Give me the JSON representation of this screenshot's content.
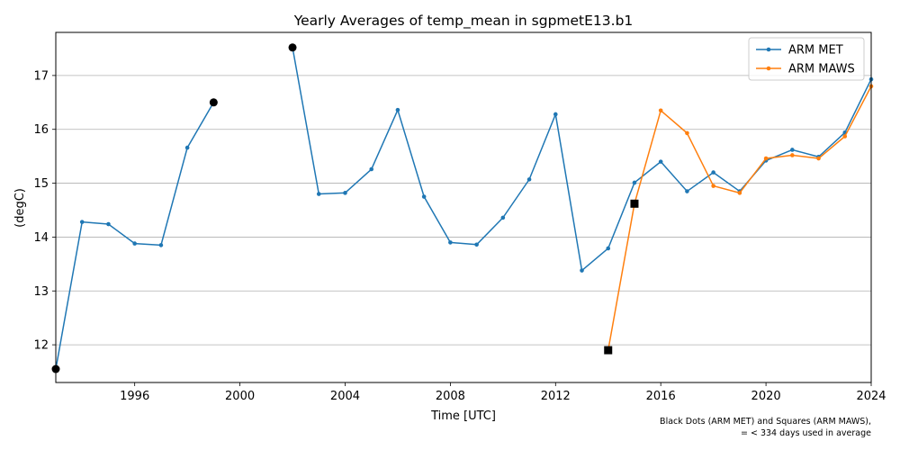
{
  "chart_data": {
    "type": "line",
    "title": "Yearly Averages of temp_mean in sgpmetE13.b1",
    "xlabel": "Time [UTC]",
    "ylabel": "(degC)",
    "xlim": [
      1993,
      2024
    ],
    "ylim": [
      11.3,
      17.8
    ],
    "x_ticks": [
      1996,
      2000,
      2004,
      2008,
      2012,
      2016,
      2020,
      2024
    ],
    "y_ticks": [
      12,
      13,
      14,
      15,
      16,
      17
    ],
    "grid": "horizontal",
    "legend_position": "top-right",
    "series": [
      {
        "name": "ARM MET",
        "color": "#1f77b4",
        "points": [
          [
            1993,
            11.55
          ],
          [
            1994,
            14.28
          ],
          [
            1995,
            14.24
          ],
          [
            1996,
            13.88
          ],
          [
            1997,
            13.85
          ],
          [
            1998,
            15.66
          ],
          [
            1999,
            16.5
          ],
          null,
          [
            2002,
            17.52
          ],
          [
            2003,
            14.8
          ],
          [
            2004,
            14.82
          ],
          [
            2005,
            15.26
          ],
          [
            2006,
            16.36
          ],
          [
            2007,
            14.75
          ],
          [
            2008,
            13.9
          ],
          [
            2009,
            13.86
          ],
          [
            2010,
            14.36
          ],
          [
            2011,
            15.07
          ],
          [
            2012,
            16.28
          ],
          [
            2013,
            13.38
          ],
          [
            2014,
            13.79
          ],
          [
            2015,
            15.01
          ],
          [
            2016,
            15.4
          ],
          [
            2017,
            14.85
          ],
          [
            2018,
            15.2
          ],
          [
            2019,
            14.85
          ],
          [
            2020,
            15.42
          ],
          [
            2021,
            15.62
          ],
          [
            2022,
            15.49
          ],
          [
            2023,
            15.94
          ],
          [
            2024,
            16.93
          ]
        ],
        "partial_years": [
          1993,
          1999,
          2002
        ]
      },
      {
        "name": "ARM MAWS",
        "color": "#ff7f0e",
        "points": [
          [
            2014,
            11.9
          ],
          [
            2015,
            14.62
          ],
          [
            2016,
            16.35
          ],
          [
            2017,
            15.93
          ],
          [
            2018,
            14.95
          ],
          [
            2019,
            14.82
          ],
          [
            2020,
            15.46
          ],
          [
            2021,
            15.52
          ],
          [
            2022,
            15.46
          ],
          [
            2023,
            15.87
          ],
          [
            2024,
            16.8
          ]
        ],
        "partial_years": [
          2014,
          2015
        ]
      }
    ],
    "footnote_line1": "Black Dots (ARM MET) and Squares (ARM MAWS),",
    "footnote_line2": "= < 334 days used in average"
  }
}
